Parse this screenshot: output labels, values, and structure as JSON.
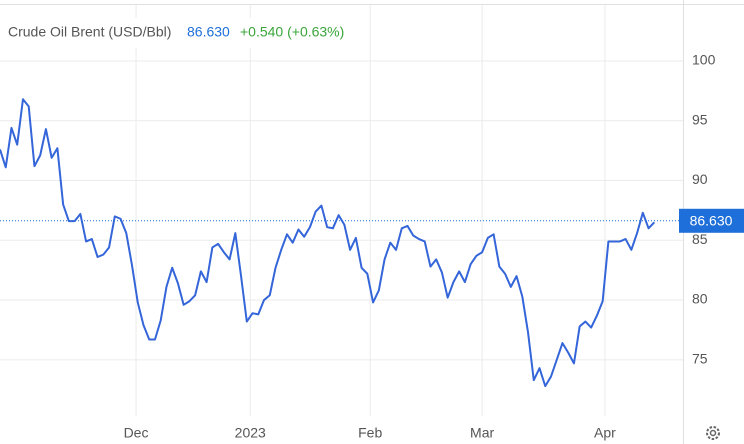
{
  "chart_data": {
    "type": "line",
    "title": "Crude Oil Brent (USD/Bbl)",
    "price": {
      "value": 86.63,
      "label": "86.630"
    },
    "change": "+0.540 (+0.63%)",
    "color": "#3465d9",
    "price_color": "#1e6fd9",
    "change_color": "#3aa53a",
    "values": [
      92.6,
      91.1,
      94.4,
      93.0,
      96.8,
      96.2,
      91.2,
      92.1,
      94.3,
      91.9,
      92.7,
      88.0,
      86.6,
      86.6,
      87.2,
      84.9,
      85.1,
      83.6,
      83.8,
      84.4,
      87.0,
      86.8,
      85.6,
      82.9,
      79.8,
      77.9,
      76.7,
      76.7,
      78.3,
      81.1,
      82.7,
      81.4,
      79.6,
      79.9,
      80.4,
      82.4,
      81.5,
      84.4,
      84.7,
      84.0,
      83.4,
      85.6,
      82.0,
      78.2,
      78.9,
      78.8,
      80.0,
      80.4,
      82.7,
      84.2,
      85.5,
      84.8,
      85.9,
      85.3,
      86.1,
      87.4,
      87.9,
      86.1,
      86.0,
      87.1,
      86.3,
      84.2,
      85.2,
      82.7,
      82.2,
      79.8,
      80.8,
      83.4,
      84.8,
      84.2,
      86.0,
      86.2,
      85.4,
      85.1,
      84.9,
      82.8,
      83.4,
      82.3,
      80.2,
      81.5,
      82.4,
      81.5,
      83.0,
      83.7,
      84.0,
      85.2,
      85.5,
      82.8,
      82.2,
      81.1,
      82.0,
      80.3,
      77.3,
      73.3,
      74.3,
      72.8,
      73.6,
      75.0,
      76.4,
      75.6,
      74.7,
      77.8,
      78.2,
      77.7,
      78.7,
      79.9,
      84.9,
      84.9,
      84.9,
      85.1,
      84.2,
      85.6,
      87.3,
      86.0,
      86.5
    ],
    "xlim": [
      0,
      119
    ],
    "xticks": [
      {
        "value": 23.7,
        "label": "Dec"
      },
      {
        "value": 43.6,
        "label": "2023"
      },
      {
        "value": 64.5,
        "label": "Feb"
      },
      {
        "value": 84,
        "label": "Mar"
      },
      {
        "value": 105.4,
        "label": "Apr"
      }
    ],
    "ylim": [
      70.3,
      105.1
    ],
    "yticks": [
      75,
      80,
      85,
      90,
      95,
      100
    ],
    "grid": true
  }
}
